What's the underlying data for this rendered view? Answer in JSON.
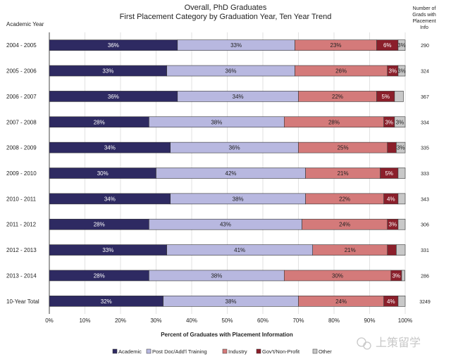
{
  "chart_data": {
    "type": "bar",
    "orientation": "horizontal",
    "stacked": true,
    "title": "Overall, PhD Graduates",
    "subtitle": "First Placement Category by Graduation Year, Ten Year Trend",
    "ylabel": "Academic Year",
    "xlabel": "Percent of Graduates with Placement Information",
    "right_header": "Number of Grads with Placement Info",
    "xlim": [
      0,
      100
    ],
    "xticks": [
      "0%",
      "10%",
      "20%",
      "30%",
      "40%",
      "50%",
      "60%",
      "70%",
      "80%",
      "90%",
      "100%"
    ],
    "categories": [
      "2004 - 2005",
      "2005 - 2006",
      "2006 - 2007",
      "2007 - 2008",
      "2008 - 2009",
      "2009 - 2010",
      "2010 - 2011",
      "2011 - 2012",
      "2012 - 2013",
      "2013 - 2014",
      "10-Year Total"
    ],
    "counts": [
      "290",
      "324",
      "367",
      "334",
      "335",
      "333",
      "343",
      "306",
      "331",
      "286",
      "3249"
    ],
    "series": [
      {
        "name": "Academic",
        "color": "#2e2a62",
        "label_color": "#ffffff",
        "values": [
          36,
          33,
          36,
          28,
          34,
          30,
          34,
          28,
          33,
          28,
          32
        ],
        "labels": [
          "36%",
          "33%",
          "36%",
          "28%",
          "34%",
          "30%",
          "34%",
          "28%",
          "33%",
          "28%",
          "32%"
        ]
      },
      {
        "name": "Post Doc/Add'l Training",
        "color": "#b8b8e0",
        "label_color": "#222222",
        "values": [
          33,
          36,
          34,
          38,
          36,
          42,
          38,
          43,
          41,
          38,
          38
        ],
        "labels": [
          "33%",
          "36%",
          "34%",
          "38%",
          "36%",
          "42%",
          "38%",
          "43%",
          "41%",
          "38%",
          "38%"
        ]
      },
      {
        "name": "Industry",
        "color": "#d47a7a",
        "label_color": "#222222",
        "values": [
          23,
          26,
          22,
          28,
          25,
          21,
          22,
          24,
          21,
          30,
          24
        ],
        "labels": [
          "23%",
          "26%",
          "22%",
          "28%",
          "25%",
          "21%",
          "22%",
          "24%",
          "21%",
          "30%",
          "24%"
        ]
      },
      {
        "name": "Gov't/Non-Profit",
        "color": "#8b1f2b",
        "label_color": "#ffffff",
        "values": [
          6,
          3,
          5,
          3,
          2.5,
          5,
          4,
          3,
          2.5,
          3,
          4
        ],
        "labels": [
          "6%",
          "3%",
          "5%",
          "3%",
          "",
          "5%",
          "4%",
          "3%",
          "",
          "3%",
          "4%"
        ]
      },
      {
        "name": "Other",
        "color": "#c8c8c8",
        "label_color": "#222222",
        "values": [
          3,
          3,
          2.5,
          3,
          3,
          2.5,
          2.5,
          2.5,
          2.5,
          0.9,
          2.3
        ],
        "labels": [
          "3%",
          "3%",
          "",
          "3%",
          "3%",
          "",
          "",
          "",
          "",
          "",
          ""
        ]
      }
    ]
  },
  "watermark": {
    "text": "上策留学"
  }
}
